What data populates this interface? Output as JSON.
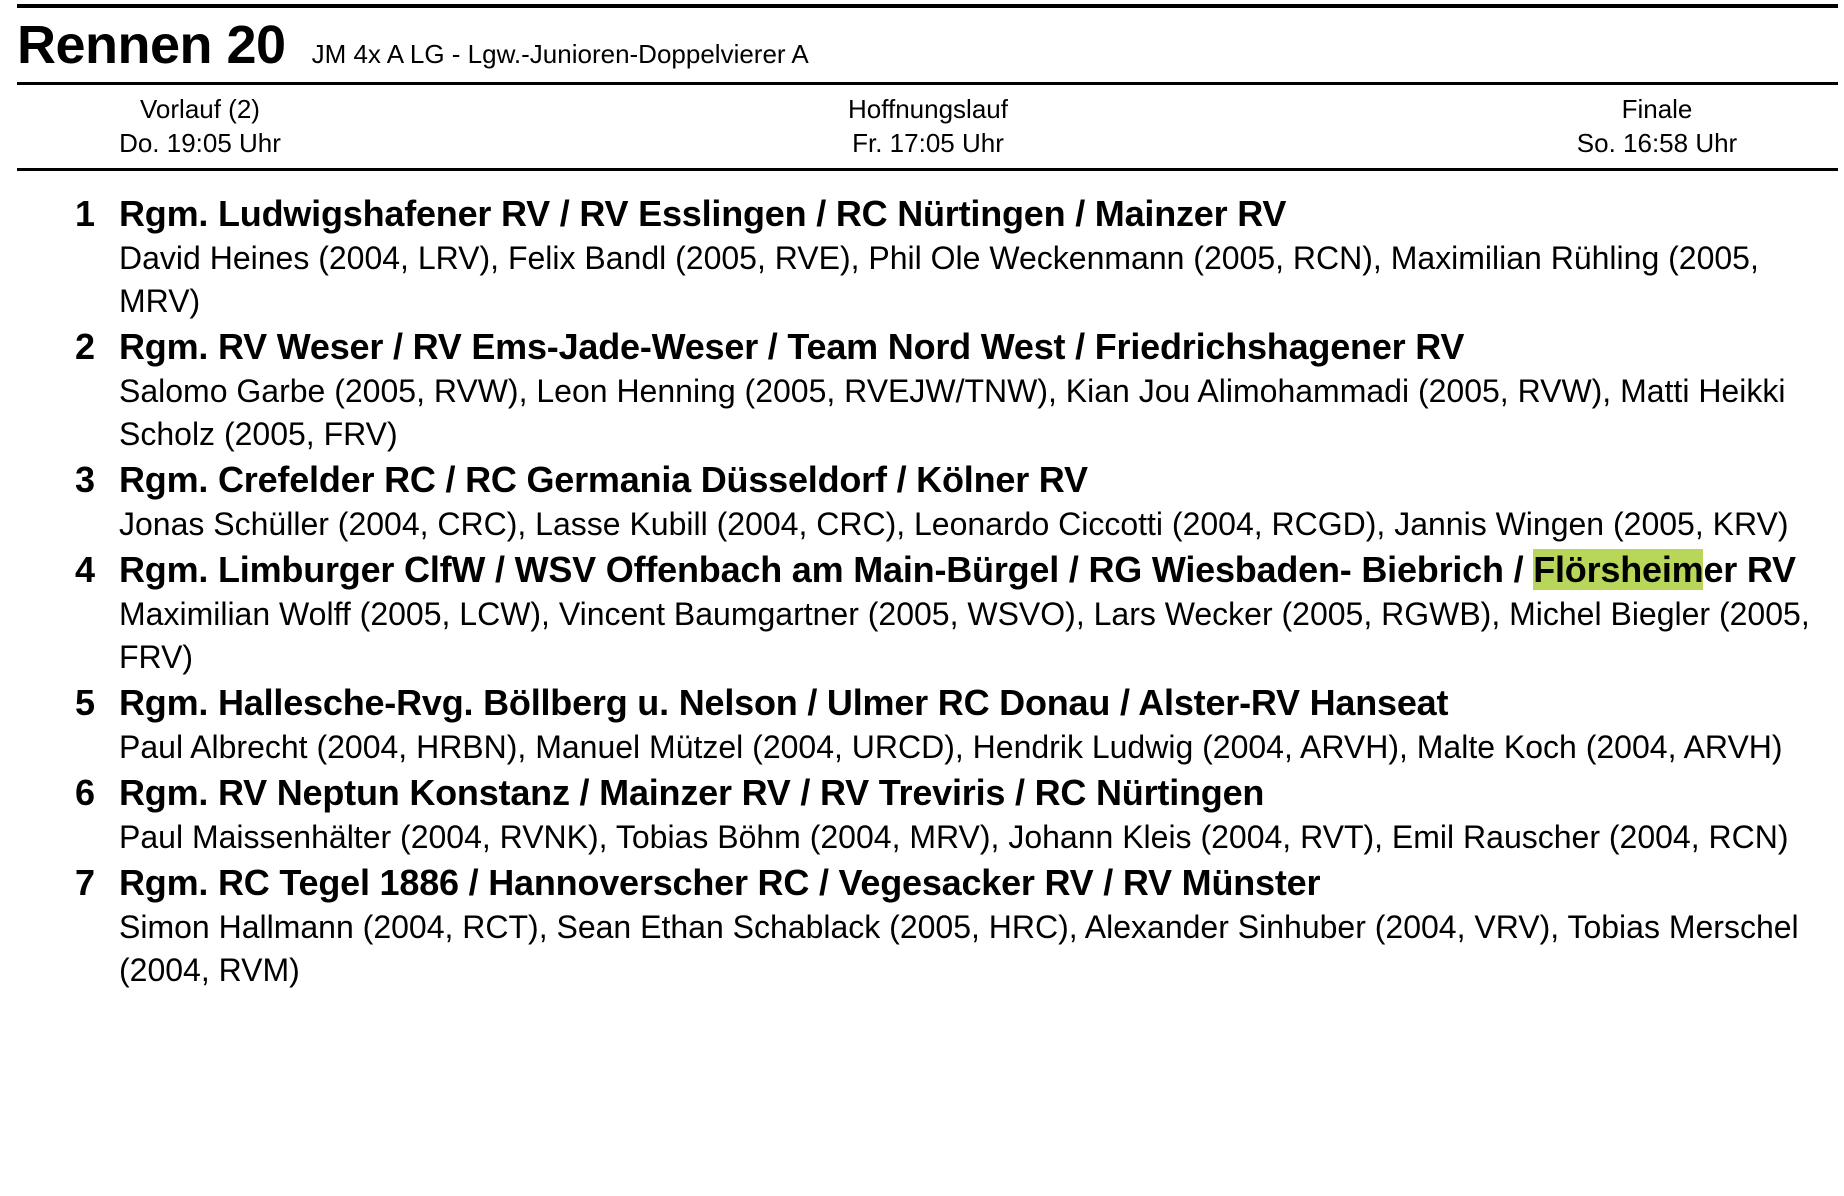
{
  "header": {
    "race": "Rennen 20",
    "description": "JM 4x A LG - Lgw.-Junioren-Doppelvierer A"
  },
  "schedule": [
    {
      "label": "Vorlauf (2)",
      "time": "Do. 19:05 Uhr"
    },
    {
      "label": "Hoffnungslauf",
      "time": "Fr. 17:05 Uhr"
    },
    {
      "label": "Finale",
      "time": "So. 16:58 Uhr"
    }
  ],
  "highlight_color": "#b8d65a",
  "entries": [
    {
      "num": "1",
      "crew": "Rgm. Ludwigshafener RV / RV Esslingen / RC Nürtingen / Mainzer RV",
      "rowers": "David Heines (2004, LRV), Felix Bandl (2005, RVE), Phil Ole Weckenmann (2005, RCN), Maximilian Rühling (2005, MRV)"
    },
    {
      "num": "2",
      "crew": "Rgm. RV Weser / RV Ems-Jade-Weser / Team Nord West / Friedrichshagener RV",
      "rowers": "Salomo Garbe (2005, RVW), Leon Henning (2005, RVEJW/TNW), Kian Jou Alimohammadi (2005, RVW), Matti Heikki Scholz (2005, FRV)"
    },
    {
      "num": "3",
      "crew": "Rgm. Crefelder RC / RC Germania Düsseldorf / Kölner RV",
      "rowers": "Jonas Schüller (2004, CRC), Lasse Kubill (2004, CRC), Leonardo Ciccotti (2004, RCGD), Jannis Wingen (2005, KRV)"
    },
    {
      "num": "4",
      "crew_pre": "Rgm. Limburger ClfW / WSV Offenbach am Main-Bürgel / RG Wiesbaden- Biebrich / ",
      "crew_hl": "Flörsheim",
      "crew_post": "er RV",
      "rowers": "Maximilian Wolff (2005, LCW), Vincent Baumgartner (2005, WSVO), Lars Wecker (2005, RGWB), Michel Biegler (2005, FRV)"
    },
    {
      "num": "5",
      "crew": "Rgm. Hallesche-Rvg. Böllberg u. Nelson / Ulmer RC Donau / Alster-RV Hanseat",
      "rowers": "Paul Albrecht (2004, HRBN), Manuel Mützel (2004, URCD), Hendrik Ludwig (2004, ARVH), Malte Koch (2004, ARVH)"
    },
    {
      "num": "6",
      "crew": "Rgm. RV Neptun Konstanz / Mainzer RV / RV Treviris / RC Nürtingen",
      "rowers": "Paul Maissenhälter (2004, RVNK), Tobias Böhm (2004, MRV), Johann Kleis (2004, RVT), Emil Rauscher (2004, RCN)"
    },
    {
      "num": "7",
      "crew": "Rgm. RC Tegel 1886 / Hannoverscher RC / Vegesacker RV / RV Münster",
      "rowers": "Simon Hallmann (2004, RCT), Sean Ethan Schablack (2005, HRC), Alexander Sinhuber (2004, VRV), Tobias Merschel (2004, RVM)"
    }
  ]
}
